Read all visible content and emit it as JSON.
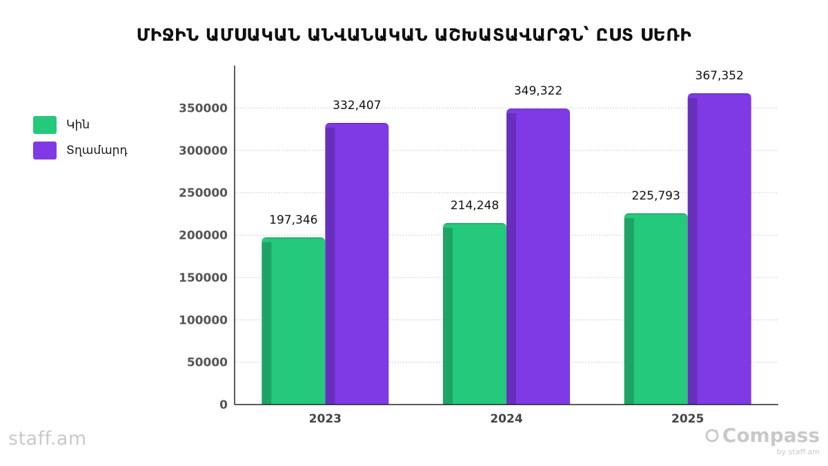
{
  "chart_data": {
    "type": "bar",
    "title": "ՄԻՋԻՆ ԱՄՍԱԿԱՆ ԱՆՎԱՆԱԿԱՆ ԱՇԽԱՏԱՎԱՐՁՆ՝ ԸՍՏ ՍԵՌԻ",
    "categories": [
      "2023",
      "2024",
      "2025"
    ],
    "series": [
      {
        "name": "Կին",
        "color": "#25c97c",
        "values": [
          197346,
          214248,
          225793
        ],
        "labels": [
          "197,346",
          "214,248",
          "225,793"
        ]
      },
      {
        "name": "Տղամարդ",
        "color": "#7f3ae6",
        "values": [
          332407,
          349322,
          367352
        ],
        "labels": [
          "332,407",
          "349,322",
          "367,352"
        ]
      }
    ],
    "ylim": [
      0,
      400000
    ],
    "yticks": [
      "0",
      "50000",
      "100000",
      "150000",
      "200000",
      "250000",
      "300000",
      "350000"
    ],
    "yticks_values": [
      0,
      50000,
      100000,
      150000,
      200000,
      250000,
      300000,
      350000
    ],
    "grid": true,
    "legend_position": "left"
  },
  "branding": {
    "left_logo": "staff.am",
    "right_logo": "Compass",
    "right_logo_sub": "by staff.am"
  }
}
